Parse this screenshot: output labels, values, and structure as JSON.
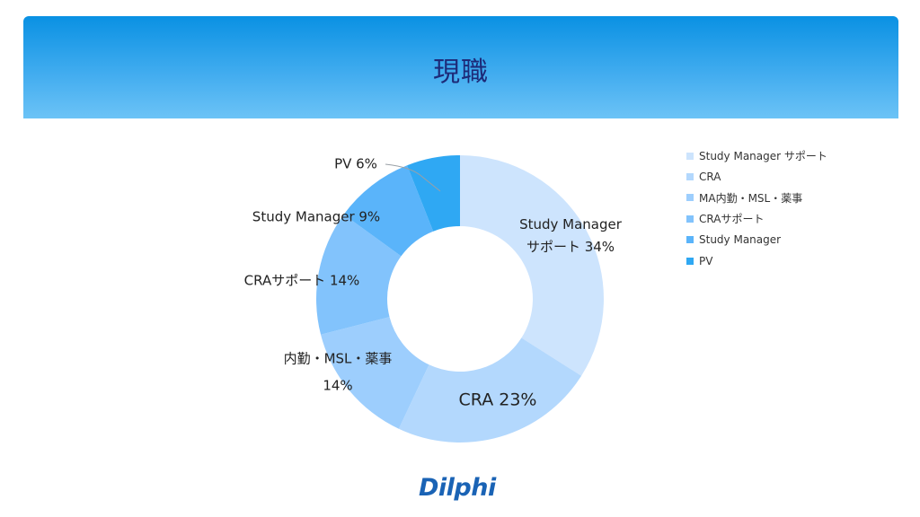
{
  "slide": {
    "title": "現職",
    "logo_text": "Dilphi"
  },
  "chart_data": {
    "type": "pie",
    "donut": true,
    "categories": [
      "Study Manager サポート",
      "CRA",
      "MA内勤・MSL・薬事",
      "CRAサポート",
      "Study Manager",
      "PV"
    ],
    "values": [
      34,
      23,
      14,
      14,
      9,
      6
    ],
    "unit": "%",
    "colors": [
      "#cde4fd",
      "#b3d8fd",
      "#9dcefd",
      "#82c3fc",
      "#5ab4fa",
      "#2fa8f3"
    ],
    "data_labels": [
      [
        "Study Manager",
        "サポート 34%"
      ],
      [
        "CRA 23%"
      ],
      [
        "内勤・MSL・薬事",
        "14%"
      ],
      [
        "CRAサポート 14%"
      ],
      [
        "Study Manager 9%"
      ],
      [
        "PV 6%"
      ]
    ],
    "legend_labels": [
      "Study Manager サポート",
      "CRA",
      "MA内勤・MSL・薬事",
      "CRAサポート",
      "Study Manager",
      "PV"
    ],
    "legend_position": "right"
  }
}
